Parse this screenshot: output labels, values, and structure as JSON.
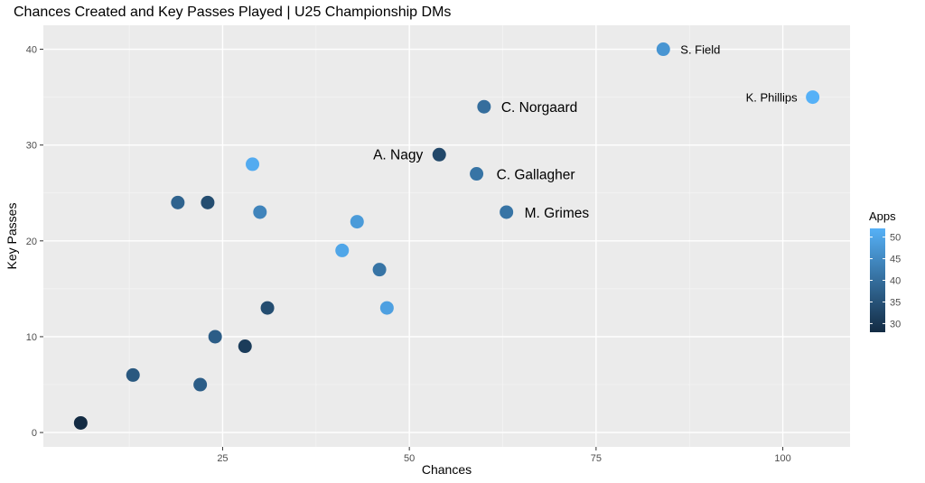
{
  "chart_data": {
    "type": "scatter",
    "title": "Chances Created and Key Passes Played | U25 Championship DMs",
    "xlabel": "Chances",
    "ylabel": "Key Passes",
    "xlim": [
      1,
      109
    ],
    "ylim": [
      -1.5,
      42.5
    ],
    "x_ticks": [
      25,
      50,
      75,
      100
    ],
    "y_ticks": [
      0,
      10,
      20,
      30,
      40
    ],
    "grid": true,
    "legend": {
      "title": "Apps",
      "type": "colorbar",
      "position": "right",
      "range": [
        28,
        52
      ],
      "ticks": [
        30,
        35,
        40,
        45,
        50
      ],
      "low_color": "#132B43",
      "high_color": "#56B1F7"
    },
    "points": [
      {
        "x": 84,
        "y": 40,
        "apps": 47,
        "label": "S. Field"
      },
      {
        "x": 104,
        "y": 35,
        "apps": 52,
        "label": "K. Phillips"
      },
      {
        "x": 60,
        "y": 34,
        "apps": 40,
        "label": "C. Norgaard"
      },
      {
        "x": 54,
        "y": 29,
        "apps": 33,
        "label": "A. Nagy"
      },
      {
        "x": 59,
        "y": 27,
        "apps": 41,
        "label": "C. Gallagher"
      },
      {
        "x": 63,
        "y": 23,
        "apps": 41,
        "label": "M. Grimes"
      },
      {
        "x": 29,
        "y": 28,
        "apps": 51,
        "label": ""
      },
      {
        "x": 19,
        "y": 24,
        "apps": 38,
        "label": ""
      },
      {
        "x": 23,
        "y": 24,
        "apps": 34,
        "label": ""
      },
      {
        "x": 30,
        "y": 23,
        "apps": 44,
        "label": ""
      },
      {
        "x": 43,
        "y": 22,
        "apps": 48,
        "label": ""
      },
      {
        "x": 41,
        "y": 19,
        "apps": 50,
        "label": ""
      },
      {
        "x": 46,
        "y": 17,
        "apps": 41,
        "label": ""
      },
      {
        "x": 31,
        "y": 13,
        "apps": 34,
        "label": ""
      },
      {
        "x": 47,
        "y": 13,
        "apps": 49,
        "label": ""
      },
      {
        "x": 24,
        "y": 10,
        "apps": 37,
        "label": ""
      },
      {
        "x": 28,
        "y": 9,
        "apps": 31,
        "label": ""
      },
      {
        "x": 13,
        "y": 6,
        "apps": 36,
        "label": ""
      },
      {
        "x": 22,
        "y": 5,
        "apps": 37,
        "label": ""
      },
      {
        "x": 6,
        "y": 1,
        "apps": 28,
        "label": ""
      }
    ]
  }
}
